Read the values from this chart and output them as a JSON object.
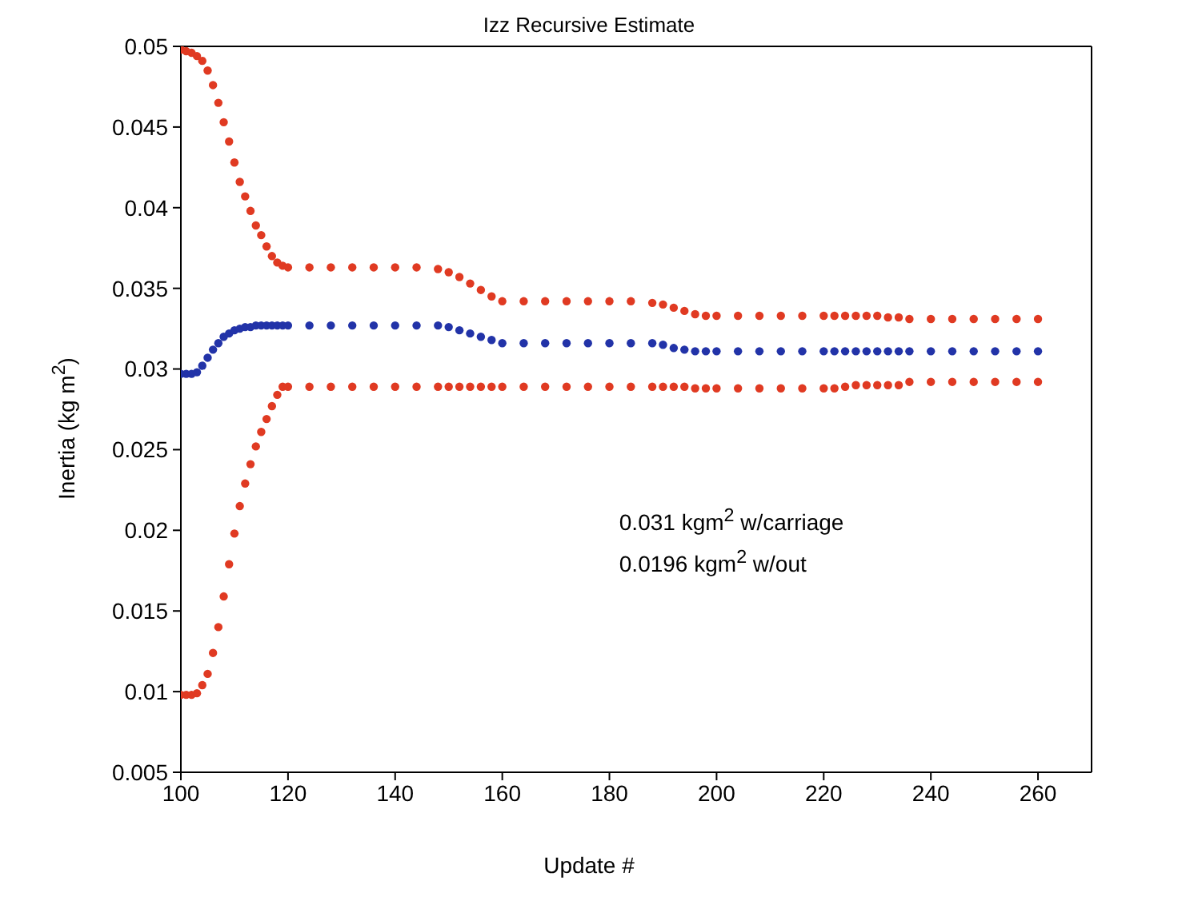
{
  "chart_data": {
    "type": "scatter",
    "title": "Izz Recursive Estimate",
    "xlabel": "Update #",
    "ylabel": "Inertia (kg m$^{2}$)",
    "x": [
      100,
      101,
      102,
      103,
      104,
      105,
      106,
      107,
      108,
      109,
      110,
      111,
      112,
      113,
      114,
      115,
      116,
      117,
      118,
      119,
      120,
      124,
      128,
      132,
      136,
      140,
      144,
      148,
      150,
      152,
      154,
      156,
      158,
      160,
      164,
      168,
      172,
      176,
      180,
      184,
      188,
      190,
      192,
      194,
      196,
      198,
      200,
      204,
      208,
      212,
      216,
      220,
      222,
      224,
      226,
      228,
      230,
      232,
      234,
      236,
      240,
      244,
      248,
      252,
      256,
      260
    ],
    "series": [
      {
        "color": "#e03a22",
        "values": [
          0.0498,
          0.0497,
          0.0496,
          0.0494,
          0.0491,
          0.0485,
          0.0476,
          0.0465,
          0.0453,
          0.0441,
          0.0428,
          0.0416,
          0.0407,
          0.0398,
          0.0389,
          0.0383,
          0.0376,
          0.037,
          0.0366,
          0.0364,
          0.0363,
          0.0363,
          0.0363,
          0.0363,
          0.0363,
          0.0363,
          0.0363,
          0.0362,
          0.036,
          0.0357,
          0.0353,
          0.0349,
          0.0345,
          0.0342,
          0.0342,
          0.0342,
          0.0342,
          0.0342,
          0.0342,
          0.0342,
          0.0341,
          0.034,
          0.0338,
          0.0336,
          0.0334,
          0.0333,
          0.0333,
          0.0333,
          0.0333,
          0.0333,
          0.0333,
          0.0333,
          0.0333,
          0.0333,
          0.0333,
          0.0333,
          0.0333,
          0.0332,
          0.0332,
          0.0331,
          0.0331,
          0.0331,
          0.0331,
          0.0331,
          0.0331,
          0.0331
        ]
      },
      {
        "color": "#2233a8",
        "values": [
          0.0297,
          0.0297,
          0.0297,
          0.0298,
          0.0302,
          0.0307,
          0.0312,
          0.0316,
          0.032,
          0.0322,
          0.0324,
          0.0325,
          0.0326,
          0.0326,
          0.0327,
          0.0327,
          0.0327,
          0.0327,
          0.0327,
          0.0327,
          0.0327,
          0.0327,
          0.0327,
          0.0327,
          0.0327,
          0.0327,
          0.0327,
          0.0327,
          0.0326,
          0.0324,
          0.0322,
          0.032,
          0.0318,
          0.0316,
          0.0316,
          0.0316,
          0.0316,
          0.0316,
          0.0316,
          0.0316,
          0.0316,
          0.0315,
          0.0313,
          0.0312,
          0.0311,
          0.0311,
          0.0311,
          0.0311,
          0.0311,
          0.0311,
          0.0311,
          0.0311,
          0.0311,
          0.0311,
          0.0311,
          0.0311,
          0.0311,
          0.0311,
          0.0311,
          0.0311,
          0.0311,
          0.0311,
          0.0311,
          0.0311,
          0.0311,
          0.0311
        ]
      },
      {
        "color": "#e03a22",
        "values": [
          0.0098,
          0.0098,
          0.0098,
          0.0099,
          0.0104,
          0.0111,
          0.0124,
          0.014,
          0.0159,
          0.0179,
          0.0198,
          0.0215,
          0.0229,
          0.0241,
          0.0252,
          0.0261,
          0.0269,
          0.0277,
          0.0284,
          0.0289,
          0.0289,
          0.0289,
          0.0289,
          0.0289,
          0.0289,
          0.0289,
          0.0289,
          0.0289,
          0.0289,
          0.0289,
          0.0289,
          0.0289,
          0.0289,
          0.0289,
          0.0289,
          0.0289,
          0.0289,
          0.0289,
          0.0289,
          0.0289,
          0.0289,
          0.0289,
          0.0289,
          0.0289,
          0.0288,
          0.0288,
          0.0288,
          0.0288,
          0.0288,
          0.0288,
          0.0288,
          0.0288,
          0.0288,
          0.0289,
          0.029,
          0.029,
          0.029,
          0.029,
          0.029,
          0.0292,
          0.0292,
          0.0292,
          0.0292,
          0.0292,
          0.0292,
          0.0292
        ]
      }
    ],
    "xlim": [
      100,
      270
    ],
    "xticks": [
      100,
      120,
      140,
      160,
      180,
      200,
      220,
      240,
      260
    ],
    "ylim": [
      0.005,
      0.05
    ],
    "yticks": [
      0.005,
      0.01,
      0.015,
      0.02,
      0.025,
      0.03,
      0.035,
      0.04,
      0.045,
      0.05
    ],
    "marker": "circle",
    "annotations": [
      "0.031 kgm$^{2}$ w/carriage",
      "0.0196 kgm$^{2}$ w/out"
    ]
  }
}
